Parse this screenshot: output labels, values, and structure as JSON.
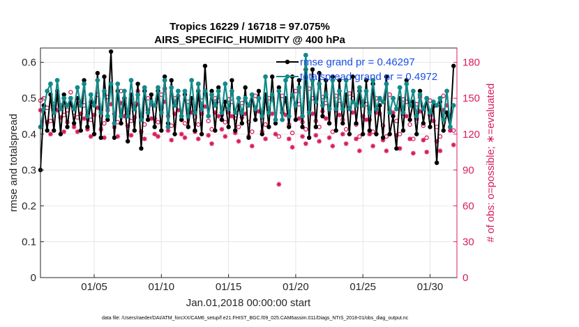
{
  "chart_data": {
    "type": "line",
    "title": "Tropics 16229 / 16718 = 97.075%",
    "subtitle": "AIRS_SPECIFIC_HUMIDITY @ 400 hPa",
    "xlabel": "Jan.01,2018 00:00:00 start",
    "ylabel": "rmse and totalspread",
    "y2label": "# of obs: o=possible; ∗=evaluated",
    "xlim": [
      1,
      32
    ],
    "ylim": [
      0,
      0.64
    ],
    "y2lim": [
      0,
      192
    ],
    "x_ticks": [
      5,
      10,
      15,
      20,
      25,
      30
    ],
    "x_tick_labels": [
      "01/05",
      "01/10",
      "01/15",
      "01/20",
      "01/25",
      "01/30"
    ],
    "y_ticks": [
      0,
      0.1,
      0.2,
      0.3,
      0.4,
      0.5,
      0.6
    ],
    "y_tick_labels": [
      "0",
      "0.1",
      "0.2",
      "0.3",
      "0.4",
      "0.5",
      "0.6"
    ],
    "y2_ticks": [
      0,
      30,
      60,
      90,
      120,
      150,
      180
    ],
    "y2_tick_labels": [
      "0",
      "30",
      "60",
      "90",
      "120",
      "150",
      "180"
    ],
    "grid": true,
    "legend_position": "top-right",
    "legend": [
      "rmse grand pr = 0.46297",
      "totalspread grand pr = 0.4972"
    ],
    "footer": "data file: /Users/raeder/DAI/ATM_forcXX/CAM6_setup/f.e21.FHIST_BGC.f09_025.CAM6assim.011/Diags_NTrS_2018-01/obs_diag_output.nc",
    "colors": {
      "rmse": "#000000",
      "totalspread": "#138a8a",
      "obs": "#d81b60",
      "legend_text": "#1a4fe6",
      "grid": "#e6e6e6"
    },
    "x": [
      1.0,
      1.25,
      1.5,
      1.75,
      2.0,
      2.25,
      2.5,
      2.75,
      3.0,
      3.25,
      3.5,
      3.75,
      4.0,
      4.25,
      4.5,
      4.75,
      5.0,
      5.25,
      5.5,
      5.75,
      6.0,
      6.25,
      6.5,
      6.75,
      7.0,
      7.25,
      7.5,
      7.75,
      8.0,
      8.25,
      8.5,
      8.75,
      9.0,
      9.25,
      9.5,
      9.75,
      10.0,
      10.25,
      10.5,
      10.75,
      11.0,
      11.25,
      11.5,
      11.75,
      12.0,
      12.25,
      12.5,
      12.75,
      13.0,
      13.25,
      13.5,
      13.75,
      14.0,
      14.25,
      14.5,
      14.75,
      15.0,
      15.25,
      15.5,
      15.75,
      16.0,
      16.25,
      16.5,
      16.75,
      17.0,
      17.25,
      17.5,
      17.75,
      18.0,
      18.25,
      18.5,
      18.75,
      19.0,
      19.25,
      19.5,
      19.75,
      20.0,
      20.25,
      20.5,
      20.75,
      21.0,
      21.25,
      21.5,
      21.75,
      22.0,
      22.25,
      22.5,
      22.75,
      23.0,
      23.25,
      23.5,
      23.75,
      24.0,
      24.25,
      24.5,
      24.75,
      25.0,
      25.25,
      25.5,
      25.75,
      26.0,
      26.25,
      26.5,
      26.75,
      27.0,
      27.25,
      27.5,
      27.75,
      28.0,
      28.25,
      28.5,
      28.75,
      29.0,
      29.25,
      29.5,
      29.75,
      30.0,
      30.25,
      30.5,
      30.75,
      31.0,
      31.25,
      31.5,
      31.75
    ],
    "series": [
      {
        "name": "rmse",
        "axis": "left",
        "values": [
          0.3,
          0.48,
          0.41,
          0.51,
          0.41,
          0.52,
          0.4,
          0.51,
          0.42,
          0.5,
          0.43,
          0.5,
          0.41,
          0.55,
          0.42,
          0.49,
          0.4,
          0.57,
          0.39,
          0.56,
          0.44,
          0.63,
          0.39,
          0.52,
          0.43,
          0.5,
          0.38,
          0.51,
          0.41,
          0.54,
          0.36,
          0.52,
          0.44,
          0.51,
          0.42,
          0.52,
          0.41,
          0.56,
          0.43,
          0.55,
          0.4,
          0.52,
          0.44,
          0.51,
          0.42,
          0.5,
          0.41,
          0.52,
          0.4,
          0.59,
          0.45,
          0.52,
          0.41,
          0.53,
          0.44,
          0.49,
          0.42,
          0.55,
          0.41,
          0.48,
          0.43,
          0.53,
          0.39,
          0.51,
          0.44,
          0.52,
          0.4,
          0.51,
          0.42,
          0.56,
          0.43,
          0.53,
          0.46,
          0.5,
          0.42,
          0.56,
          0.44,
          0.55,
          0.42,
          0.58,
          0.39,
          0.58,
          0.42,
          0.57,
          0.45,
          0.55,
          0.43,
          0.56,
          0.41,
          0.55,
          0.43,
          0.51,
          0.4,
          0.56,
          0.43,
          0.52,
          0.4,
          0.55,
          0.41,
          0.54,
          0.4,
          0.48,
          0.39,
          0.56,
          0.4,
          0.45,
          0.36,
          0.5,
          0.41,
          0.55,
          0.44,
          0.49,
          0.4,
          0.52,
          0.43,
          0.5,
          0.42,
          0.48,
          0.32,
          0.49,
          0.41,
          0.46,
          0.42,
          0.59
        ]
      },
      {
        "name": "totalspread",
        "axis": "left",
        "values": [
          0.42,
          0.47,
          0.52,
          0.54,
          0.46,
          0.55,
          0.47,
          0.5,
          0.48,
          0.5,
          0.47,
          0.53,
          0.48,
          0.54,
          0.45,
          0.51,
          0.48,
          0.55,
          0.46,
          0.52,
          0.45,
          0.54,
          0.43,
          0.54,
          0.45,
          0.52,
          0.45,
          0.55,
          0.47,
          0.51,
          0.44,
          0.53,
          0.46,
          0.49,
          0.48,
          0.53,
          0.46,
          0.55,
          0.42,
          0.53,
          0.48,
          0.52,
          0.45,
          0.52,
          0.45,
          0.55,
          0.46,
          0.54,
          0.47,
          0.52,
          0.45,
          0.51,
          0.48,
          0.52,
          0.46,
          0.54,
          0.47,
          0.52,
          0.46,
          0.5,
          0.46,
          0.5,
          0.48,
          0.51,
          0.47,
          0.5,
          0.45,
          0.56,
          0.46,
          0.51,
          0.44,
          0.52,
          0.44,
          0.55,
          0.45,
          0.51,
          0.48,
          0.53,
          0.45,
          0.62,
          0.46,
          0.55,
          0.49,
          0.54,
          0.48,
          0.51,
          0.47,
          0.55,
          0.47,
          0.52,
          0.47,
          0.55,
          0.47,
          0.49,
          0.48,
          0.53,
          0.48,
          0.52,
          0.46,
          0.55,
          0.47,
          0.5,
          0.49,
          0.54,
          0.46,
          0.5,
          0.47,
          0.53,
          0.46,
          0.54,
          0.48,
          0.52,
          0.45,
          0.51,
          0.47,
          0.5,
          0.46,
          0.49,
          0.48,
          0.5,
          0.44,
          0.52,
          0.42,
          0.48
        ]
      },
      {
        "name": "obs_possible",
        "axis": "right",
        "values": [
          148,
          150,
          142,
          131,
          145,
          151,
          144,
          136,
          140,
          155,
          138,
          134,
          147,
          144,
          136,
          132,
          146,
          153,
          135,
          129,
          151,
          157,
          137,
          130,
          156,
          148,
          138,
          131,
          145,
          156,
          134,
          128,
          150,
          145,
          133,
          130,
          153,
          158,
          135,
          127,
          150,
          152,
          132,
          129,
          147,
          150,
          134,
          128,
          148,
          154,
          131,
          124,
          150,
          148,
          136,
          130,
          149,
          147,
          133,
          126,
          146,
          150,
          130,
          122,
          152,
          150,
          134,
          128,
          150,
          149,
          132,
          118,
          152,
          148,
          128,
          121,
          156,
          145,
          130,
          124,
          158,
          150,
          131,
          126,
          151,
          146,
          129,
          122,
          152,
          148,
          132,
          124,
          154,
          150,
          128,
          118,
          147,
          145,
          132,
          122,
          150,
          149,
          127,
          118,
          153,
          150,
          131,
          120,
          149,
          147,
          128,
          116,
          145,
          151,
          127,
          117,
          148,
          143,
          126,
          118,
          152,
          156,
          135,
          123
        ]
      },
      {
        "name": "obs_evaluated",
        "axis": "right",
        "values": [
          140,
          138,
          130,
          120,
          138,
          140,
          134,
          122,
          130,
          145,
          126,
          122,
          137,
          133,
          124,
          118,
          136,
          142,
          124,
          117,
          140,
          145,
          126,
          118,
          146,
          135,
          127,
          119,
          134,
          145,
          122,
          116,
          140,
          133,
          120,
          118,
          142,
          147,
          123,
          115,
          137,
          140,
          120,
          117,
          136,
          138,
          122,
          116,
          137,
          143,
          119,
          112,
          138,
          135,
          124,
          118,
          138,
          135,
          121,
          114,
          134,
          137,
          118,
          110,
          140,
          139,
          122,
          116,
          138,
          137,
          120,
          78,
          140,
          136,
          116,
          109,
          145,
          133,
          118,
          112,
          146,
          137,
          119,
          114,
          139,
          133,
          117,
          110,
          140,
          136,
          120,
          112,
          142,
          138,
          116,
          106,
          135,
          132,
          120,
          110,
          138,
          137,
          115,
          106,
          140,
          138,
          119,
          108,
          137,
          135,
          116,
          104,
          133,
          139,
          115,
          105,
          136,
          131,
          114,
          106,
          140,
          144,
          123,
          111
        ]
      }
    ]
  }
}
